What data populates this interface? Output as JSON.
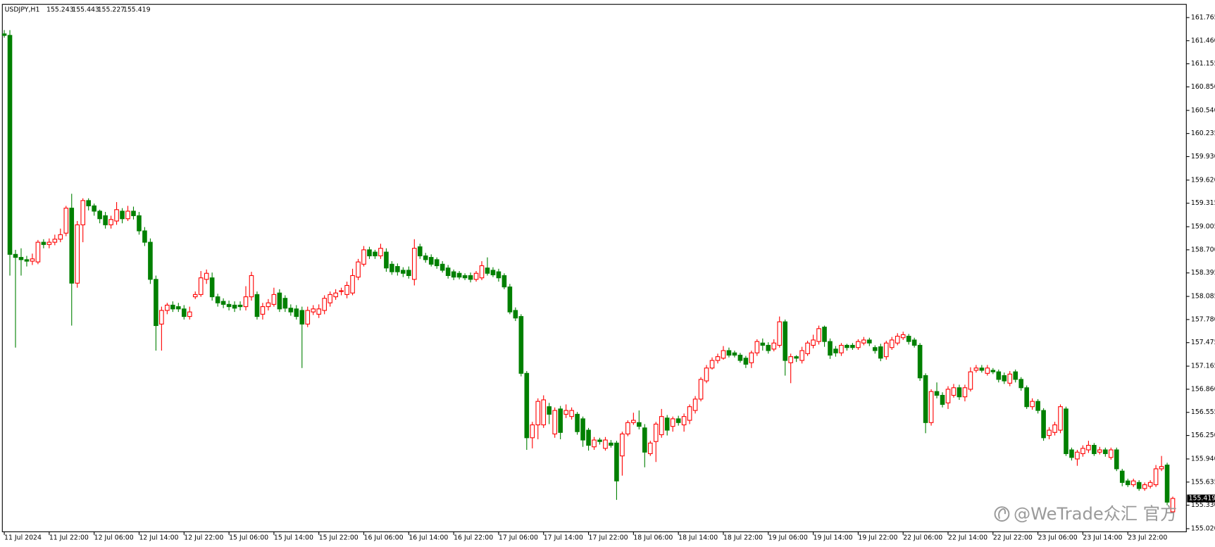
{
  "chart_data": {
    "type": "candlestick",
    "title": "USDJPY,H1",
    "header_values": [
      155.243,
      155.443,
      155.227,
      155.419
    ],
    "up_color": "#ff0000",
    "down_color": "#008000",
    "grid": false,
    "ylim": [
      154.979,
      161.939
    ],
    "yticks": [
      161.765,
      {
        "value": 161.46,
        "label": "161.460"
      },
      161.155,
      {
        "value": 160.85,
        "label": "160.850"
      },
      {
        "value": 160.54,
        "label": "160.540"
      },
      160.235,
      {
        "value": 159.93,
        "label": "159.930"
      },
      {
        "value": 159.62,
        "label": "159.620"
      },
      159.315,
      159.005,
      {
        "value": 158.7,
        "label": "158.700"
      },
      158.395,
      158.085,
      {
        "value": 157.78,
        "label": "157.780"
      },
      157.475,
      157.165,
      {
        "value": 156.86,
        "label": "156.860"
      },
      156.555,
      {
        "value": 156.25,
        "label": "156.250"
      },
      {
        "value": 155.94,
        "label": "155.940"
      },
      155.635,
      {
        "value": 155.33,
        "label": "155.330"
      },
      {
        "value": 155.02,
        "label": "155.020"
      }
    ],
    "categories": [
      "11 Jul 2024",
      null,
      null,
      null,
      null,
      null,
      null,
      null,
      "11 Jul 22:00",
      null,
      null,
      null,
      null,
      null,
      null,
      null,
      "12 Jul 06:00",
      null,
      null,
      null,
      null,
      null,
      null,
      null,
      "12 Jul 14:00",
      null,
      null,
      null,
      null,
      null,
      null,
      null,
      "12 Jul 22:00",
      null,
      null,
      null,
      null,
      null,
      null,
      null,
      "15 Jul 06:00",
      null,
      null,
      null,
      null,
      null,
      null,
      null,
      "15 Jul 14:00",
      null,
      null,
      null,
      null,
      null,
      null,
      null,
      "15 Jul 22:00",
      null,
      null,
      null,
      null,
      null,
      null,
      null,
      "16 Jul 06:00",
      null,
      null,
      null,
      null,
      null,
      null,
      null,
      "16 Jul 14:00",
      null,
      null,
      null,
      null,
      null,
      null,
      null,
      "16 Jul 22:00",
      null,
      null,
      null,
      null,
      null,
      null,
      null,
      "17 Jul 06:00",
      null,
      null,
      null,
      null,
      null,
      null,
      null,
      "17 Jul 14:00",
      null,
      null,
      null,
      null,
      null,
      null,
      null,
      "17 Jul 22:00",
      null,
      null,
      null,
      null,
      null,
      null,
      null,
      "18 Jul 06:00",
      null,
      null,
      null,
      null,
      null,
      null,
      null,
      "18 Jul 14:00",
      null,
      null,
      null,
      null,
      null,
      null,
      null,
      "18 Jul 22:00",
      null,
      null,
      null,
      null,
      null,
      null,
      null,
      "19 Jul 06:00",
      null,
      null,
      null,
      null,
      null,
      null,
      null,
      "19 Jul 14:00",
      null,
      null,
      null,
      null,
      null,
      null,
      null,
      "19 Jul 22:00",
      null,
      null,
      null,
      null,
      null,
      null,
      null,
      "22 Jul 06:00",
      null,
      null,
      null,
      null,
      null,
      null,
      null,
      "22 Jul 14:00",
      null,
      null,
      null,
      null,
      null,
      null,
      null,
      "22 Jul 22:00",
      null,
      null,
      null,
      null,
      null,
      null,
      null,
      "23 Jul 06:00",
      null,
      null,
      null,
      null,
      null,
      null,
      null,
      "23 Jul 14:00",
      null,
      null,
      null,
      null,
      null,
      null,
      null,
      "23 Jul 22:00",
      null,
      null,
      null,
      null,
      null,
      null,
      null,
      null
    ],
    "open": [
      161.55,
      161.53,
      158.64,
      158.6,
      158.57,
      158.55,
      158.54,
      158.8,
      158.77,
      158.8,
      158.84,
      158.92,
      159.25,
      158.26,
      159.03,
      159.35,
      159.28,
      159.21,
      159.15,
      159.03,
      159.08,
      159.21,
      159.11,
      159.21,
      159.15,
      158.95,
      158.8,
      158.31,
      157.72,
      157.9,
      157.97,
      157.95,
      157.92,
      157.82,
      158.08,
      158.11,
      158.31,
      158.33,
      158.08,
      158.02,
      157.98,
      157.97,
      157.97,
      157.95,
      158.08,
      158.11,
      157.85,
      157.95,
      157.98,
      158.13,
      158.06,
      157.93,
      157.92,
      157.9,
      157.72,
      157.88,
      157.85,
      157.9,
      158.0,
      158.08,
      158.16,
      158.11,
      158.13,
      158.34,
      158.51,
      158.7,
      158.67,
      158.62,
      158.67,
      158.51,
      158.48,
      158.43,
      158.43,
      158.31,
      158.74,
      158.62,
      158.6,
      158.57,
      158.51,
      158.46,
      158.41,
      158.39,
      158.36,
      158.36,
      158.31,
      158.33,
      158.46,
      158.43,
      158.41,
      158.36,
      158.21,
      157.9,
      157.82,
      157.07,
      156.22,
      156.39,
      156.39,
      156.63,
      156.27,
      156.6,
      156.53,
      156.5,
      156.53,
      156.47,
      156.32,
      156.1,
      156.19,
      156.08,
      156.15,
      156.15,
      155.98,
      156.27,
      156.42,
      156.42,
      156.35,
      156.01,
      156.17,
      156.26,
      156.48,
      156.37,
      156.47,
      156.39,
      156.45,
      156.58,
      156.73,
      156.97,
      157.14,
      157.24,
      157.27,
      157.37,
      157.34,
      157.31,
      157.27,
      157.21,
      157.34,
      157.47,
      157.44,
      157.39,
      157.44,
      157.75,
      157.21,
      157.29,
      157.24,
      157.33,
      157.44,
      157.49,
      157.68,
      157.49,
      157.39,
      157.34,
      157.44,
      157.44,
      157.41,
      157.47,
      157.51,
      157.41,
      157.42,
      157.29,
      157.41,
      157.47,
      157.54,
      157.56,
      157.51,
      157.44,
      157.04,
      156.42,
      156.83,
      156.78,
      156.68,
      156.78,
      156.88,
      156.76,
      156.86,
      157.11,
      157.14,
      157.07,
      157.11,
      157.09,
      157.04,
      156.94,
      157.09,
      156.99,
      156.88,
      156.63,
      156.7,
      156.58,
      156.25,
      156.29,
      156.32,
      156.6,
      156.06,
      155.94,
      156.01,
      156.06,
      156.12,
      156.03,
      156.06,
      155.96,
      156.06,
      155.78,
      155.65,
      155.6,
      155.63,
      155.55,
      155.58,
      155.6,
      155.81,
      155.86,
      155.243
    ],
    "high": [
      161.6,
      161.6,
      158.7,
      158.72,
      158.62,
      158.65,
      158.83,
      158.84,
      158.85,
      158.9,
      158.98,
      159.28,
      159.44,
      159.08,
      159.38,
      159.38,
      159.31,
      159.23,
      159.2,
      159.15,
      159.33,
      159.25,
      159.28,
      159.27,
      159.2,
      159.0,
      158.85,
      158.36,
      157.95,
      158.0,
      158.02,
      158.0,
      157.97,
      157.95,
      158.15,
      158.42,
      158.44,
      158.4,
      158.12,
      158.06,
      158.03,
      158.02,
      158.02,
      158.22,
      158.41,
      158.15,
      158.0,
      158.05,
      158.2,
      158.18,
      158.1,
      157.98,
      157.97,
      157.95,
      157.95,
      157.97,
      157.98,
      158.1,
      158.15,
      158.18,
      158.2,
      158.28,
      158.45,
      158.58,
      158.75,
      158.74,
      158.7,
      158.78,
      158.72,
      158.55,
      158.52,
      158.47,
      158.48,
      158.84,
      158.78,
      158.66,
      158.64,
      158.6,
      158.55,
      158.5,
      158.44,
      158.42,
      158.39,
      158.4,
      158.42,
      158.55,
      158.6,
      158.47,
      158.45,
      158.39,
      158.25,
      157.94,
      157.85,
      157.1,
      156.43,
      156.74,
      156.78,
      156.68,
      156.62,
      156.64,
      156.66,
      156.62,
      156.56,
      156.5,
      156.35,
      156.23,
      156.22,
      156.23,
      156.19,
      156.18,
      156.3,
      156.45,
      156.55,
      156.58,
      156.4,
      156.18,
      156.43,
      156.6,
      156.52,
      156.5,
      156.51,
      156.54,
      156.66,
      156.77,
      157.02,
      157.18,
      157.28,
      157.33,
      157.43,
      157.41,
      157.37,
      157.34,
      157.3,
      157.37,
      157.52,
      157.53,
      157.48,
      157.52,
      157.82,
      157.78,
      157.33,
      157.31,
      157.42,
      157.5,
      157.58,
      157.7,
      157.7,
      157.53,
      157.43,
      157.47,
      157.46,
      157.47,
      157.52,
      157.55,
      157.54,
      157.44,
      157.46,
      157.5,
      157.55,
      157.6,
      157.62,
      157.59,
      157.54,
      157.47,
      157.07,
      156.86,
      156.95,
      156.82,
      156.9,
      156.93,
      156.92,
      156.92,
      157.15,
      157.18,
      157.18,
      157.18,
      157.14,
      157.12,
      157.08,
      157.1,
      157.12,
      157.02,
      156.91,
      156.74,
      156.73,
      156.61,
      156.36,
      156.43,
      156.66,
      156.63,
      156.09,
      156.06,
      156.12,
      156.18,
      156.15,
      156.1,
      156.09,
      156.09,
      156.09,
      155.81,
      155.68,
      155.68,
      155.66,
      155.63,
      155.66,
      155.86,
      155.98,
      155.89,
      155.443
    ],
    "low": [
      161.5,
      158.36,
      157.41,
      158.36,
      158.48,
      158.5,
      158.51,
      158.72,
      158.72,
      158.76,
      158.8,
      158.88,
      157.7,
      158.2,
      158.8,
      159.22,
      159.15,
      159.05,
      158.98,
      158.98,
      159.03,
      159.05,
      159.08,
      159.1,
      158.9,
      158.75,
      158.25,
      157.37,
      157.37,
      157.85,
      157.88,
      157.88,
      157.78,
      157.78,
      158.05,
      158.08,
      158.25,
      158.03,
      157.95,
      157.93,
      157.9,
      157.88,
      157.9,
      157.9,
      158.03,
      157.78,
      157.78,
      157.9,
      157.95,
      157.88,
      157.88,
      157.83,
      157.78,
      157.14,
      157.68,
      157.84,
      157.8,
      157.85,
      157.95,
      158.04,
      158.1,
      158.06,
      158.1,
      158.3,
      158.48,
      158.58,
      158.58,
      158.58,
      158.41,
      158.37,
      158.36,
      158.34,
      158.32,
      158.23,
      158.58,
      158.53,
      158.48,
      158.45,
      158.4,
      158.32,
      158.3,
      158.31,
      158.3,
      158.27,
      158.28,
      158.3,
      158.36,
      158.34,
      158.28,
      158.18,
      157.85,
      157.76,
      157.03,
      156.06,
      156.08,
      156.2,
      156.35,
      156.4,
      156.22,
      156.2,
      156.48,
      156.46,
      156.26,
      156.1,
      156.05,
      156.06,
      156.13,
      156.05,
      156.09,
      155.4,
      155.72,
      156.24,
      156.39,
      156.33,
      155.83,
      155.98,
      155.9,
      156.22,
      156.25,
      156.3,
      156.38,
      156.3,
      156.4,
      156.54,
      156.7,
      156.94,
      157.12,
      157.2,
      157.25,
      157.28,
      157.28,
      157.21,
      157.14,
      157.14,
      157.3,
      157.37,
      157.33,
      157.36,
      157.41,
      157.04,
      156.94,
      157.22,
      157.2,
      157.3,
      157.4,
      157.45,
      157.42,
      157.26,
      157.29,
      157.3,
      157.37,
      157.38,
      157.38,
      157.44,
      157.43,
      157.33,
      157.23,
      157.25,
      157.38,
      157.44,
      157.51,
      157.45,
      157.41,
      156.97,
      156.28,
      156.38,
      156.74,
      156.62,
      156.6,
      156.75,
      156.72,
      156.7,
      156.83,
      157.08,
      157.08,
      157.04,
      157.06,
      156.95,
      156.93,
      156.9,
      156.95,
      156.84,
      156.6,
      156.59,
      156.54,
      156.18,
      156.2,
      156.25,
      156.28,
      155.98,
      155.92,
      155.85,
      155.97,
      156.02,
      155.98,
      156.0,
      155.97,
      155.93,
      155.78,
      155.58,
      155.57,
      155.57,
      155.52,
      155.52,
      155.55,
      155.57,
      155.78,
      155.33,
      155.227
    ],
    "close": [
      161.53,
      158.64,
      158.6,
      158.57,
      158.55,
      158.58,
      158.8,
      158.77,
      158.8,
      158.84,
      158.9,
      159.25,
      158.26,
      159.03,
      159.35,
      159.28,
      159.21,
      159.11,
      159.03,
      159.1,
      159.23,
      159.11,
      159.21,
      159.15,
      158.95,
      158.8,
      158.31,
      157.7,
      157.9,
      157.97,
      157.92,
      157.92,
      157.82,
      157.88,
      158.11,
      158.33,
      158.39,
      158.08,
      158.0,
      157.98,
      157.95,
      157.93,
      157.95,
      158.08,
      158.36,
      157.82,
      157.95,
      158.0,
      158.11,
      157.92,
      157.93,
      157.88,
      157.82,
      157.72,
      157.9,
      157.92,
      157.92,
      158.06,
      158.11,
      158.13,
      158.16,
      158.23,
      158.36,
      158.54,
      158.7,
      158.62,
      158.62,
      158.72,
      158.46,
      158.41,
      158.41,
      158.39,
      158.36,
      158.72,
      158.62,
      158.57,
      158.51,
      158.49,
      158.43,
      158.36,
      158.34,
      158.34,
      158.33,
      158.31,
      158.39,
      158.49,
      158.39,
      158.37,
      158.33,
      158.21,
      157.88,
      157.8,
      157.07,
      156.22,
      156.39,
      156.7,
      156.72,
      156.53,
      156.58,
      156.29,
      156.58,
      156.58,
      156.3,
      156.19,
      156.12,
      156.19,
      156.17,
      156.19,
      156.12,
      155.65,
      156.27,
      156.42,
      156.45,
      156.37,
      156.03,
      156.15,
      156.4,
      156.5,
      156.32,
      156.47,
      156.42,
      156.5,
      156.63,
      156.73,
      156.99,
      157.14,
      157.24,
      157.29,
      157.37,
      157.31,
      157.31,
      157.24,
      157.19,
      157.34,
      157.49,
      157.44,
      157.37,
      157.47,
      157.75,
      157.24,
      157.29,
      157.27,
      157.37,
      157.47,
      157.51,
      157.66,
      157.49,
      157.31,
      157.34,
      157.44,
      157.41,
      157.41,
      157.49,
      157.51,
      157.47,
      157.37,
      157.27,
      157.47,
      157.51,
      157.56,
      157.58,
      157.49,
      157.44,
      157.01,
      156.42,
      156.83,
      156.78,
      156.66,
      156.86,
      156.88,
      156.76,
      156.88,
      157.09,
      157.14,
      157.11,
      157.14,
      157.09,
      156.99,
      156.97,
      157.06,
      156.99,
      156.88,
      156.63,
      156.7,
      156.58,
      156.22,
      156.32,
      156.39,
      156.63,
      156.01,
      155.96,
      156.03,
      156.08,
      156.12,
      156.01,
      156.06,
      156.01,
      156.06,
      155.81,
      155.63,
      155.6,
      155.65,
      155.55,
      155.6,
      155.63,
      155.81,
      155.84,
      155.37,
      155.419
    ]
  },
  "watermark": "@WeTrade众汇 官方"
}
